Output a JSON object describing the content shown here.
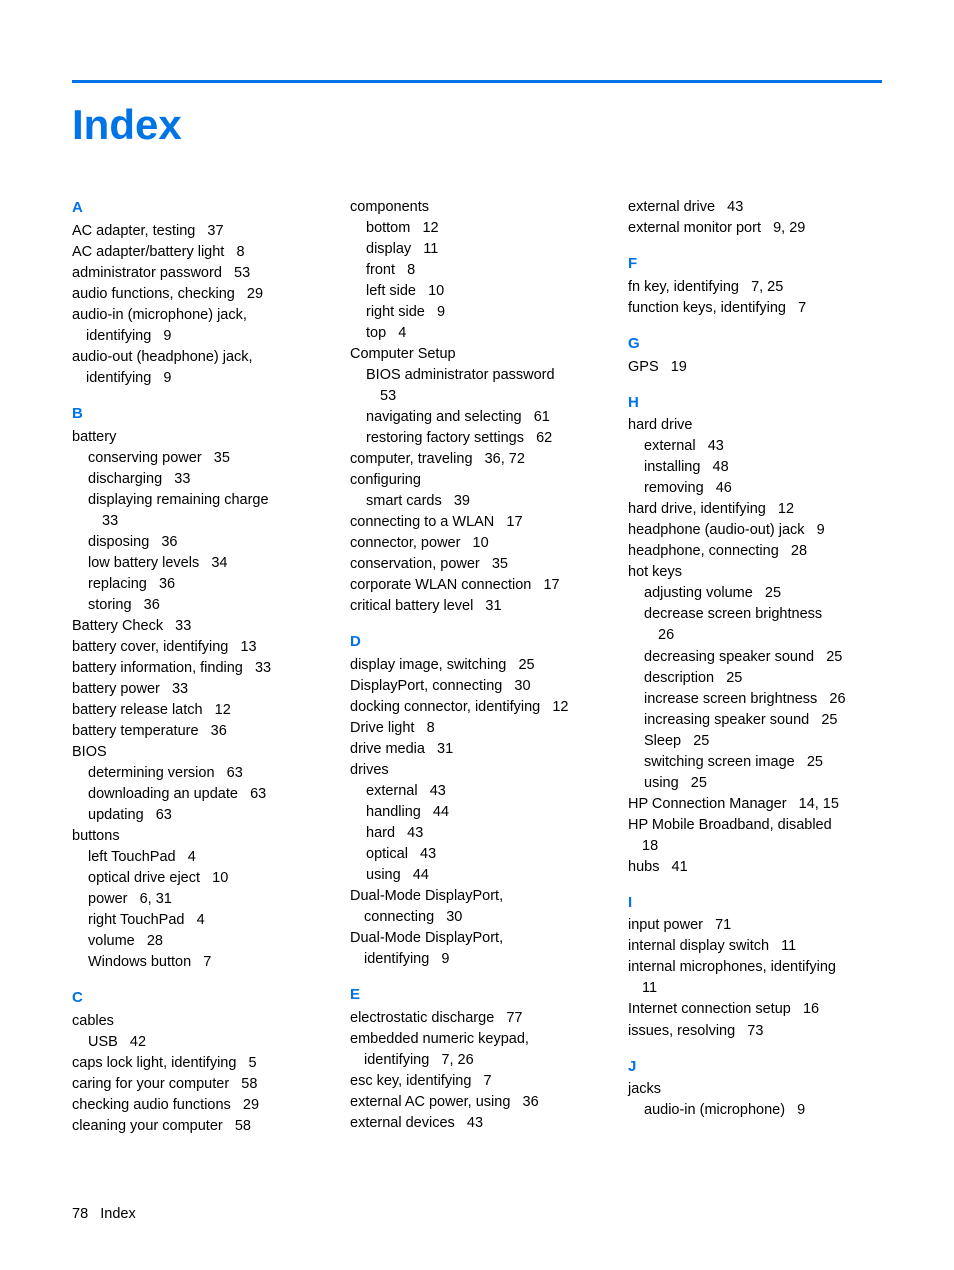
{
  "title": "Index",
  "footer_page": "78",
  "footer_label": "Index",
  "colors": {
    "accent": "#0073e6",
    "text": "#000000",
    "bg": "#ffffff"
  },
  "sections": [
    {
      "letter": "A",
      "entries": [
        {
          "t": "AC adapter, testing",
          "p": "37"
        },
        {
          "t": "AC adapter/battery light",
          "p": "8"
        },
        {
          "t": "administrator password",
          "p": "53"
        },
        {
          "t": "audio functions, checking",
          "p": "29"
        },
        {
          "t": "audio-in (microphone) jack,"
        },
        {
          "t": "identifying",
          "p": "9",
          "cont": true
        },
        {
          "t": "audio-out (headphone) jack,"
        },
        {
          "t": "identifying",
          "p": "9",
          "cont": true
        }
      ]
    },
    {
      "letter": "B",
      "entries": [
        {
          "t": "battery"
        },
        {
          "t": "conserving power",
          "p": "35",
          "sub": true
        },
        {
          "t": "discharging",
          "p": "33",
          "sub": true
        },
        {
          "t": "displaying remaining charge",
          "sub": true
        },
        {
          "t": "33",
          "subcont": true
        },
        {
          "t": "disposing",
          "p": "36",
          "sub": true
        },
        {
          "t": "low battery levels",
          "p": "34",
          "sub": true
        },
        {
          "t": "replacing",
          "p": "36",
          "sub": true
        },
        {
          "t": "storing",
          "p": "36",
          "sub": true
        },
        {
          "t": "Battery Check",
          "p": "33"
        },
        {
          "t": "battery cover, identifying",
          "p": "13"
        },
        {
          "t": "battery information, finding",
          "p": "33"
        },
        {
          "t": "battery power",
          "p": "33"
        },
        {
          "t": "battery release latch",
          "p": "12"
        },
        {
          "t": "battery temperature",
          "p": "36"
        },
        {
          "t": "BIOS"
        },
        {
          "t": "determining version",
          "p": "63",
          "sub": true
        },
        {
          "t": "downloading an update",
          "p": "63",
          "sub": true
        },
        {
          "t": "updating",
          "p": "63",
          "sub": true
        },
        {
          "t": "buttons"
        },
        {
          "t": "left TouchPad",
          "p": "4",
          "sub": true
        },
        {
          "t": "optical drive eject",
          "p": "10",
          "sub": true
        },
        {
          "t": "power",
          "p": "6, 31",
          "sub": true
        },
        {
          "t": "right TouchPad",
          "p": "4",
          "sub": true
        },
        {
          "t": "volume",
          "p": "28",
          "sub": true
        },
        {
          "t": "Windows button",
          "p": "7",
          "sub": true
        }
      ]
    },
    {
      "letter": "C",
      "entries": [
        {
          "t": "cables"
        },
        {
          "t": "USB",
          "p": "42",
          "sub": true
        },
        {
          "t": "caps lock light, identifying",
          "p": "5"
        },
        {
          "t": "caring for your computer",
          "p": "58"
        },
        {
          "t": "checking audio functions",
          "p": "29"
        },
        {
          "t": "cleaning your computer",
          "p": "58"
        }
      ]
    },
    {
      "entries": [
        {
          "t": "components"
        },
        {
          "t": "bottom",
          "p": "12",
          "sub": true
        },
        {
          "t": "display",
          "p": "11",
          "sub": true
        },
        {
          "t": "front",
          "p": "8",
          "sub": true
        },
        {
          "t": "left side",
          "p": "10",
          "sub": true
        },
        {
          "t": "right side",
          "p": "9",
          "sub": true
        },
        {
          "t": "top",
          "p": "4",
          "sub": true
        },
        {
          "t": "Computer Setup"
        },
        {
          "t": "BIOS administrator password",
          "sub": true
        },
        {
          "t": "53",
          "subcont": true
        },
        {
          "t": "navigating and selecting",
          "p": "61",
          "sub": true
        },
        {
          "t": "restoring factory settings",
          "p": "62",
          "sub": true
        },
        {
          "t": "computer, traveling",
          "p": "36, 72"
        },
        {
          "t": "configuring"
        },
        {
          "t": "smart cards",
          "p": "39",
          "sub": true
        },
        {
          "t": "connecting to a WLAN",
          "p": "17"
        },
        {
          "t": "connector, power",
          "p": "10"
        },
        {
          "t": "conservation, power",
          "p": "35"
        },
        {
          "t": "corporate WLAN connection",
          "p": "17"
        },
        {
          "t": "critical battery level",
          "p": "31"
        }
      ]
    },
    {
      "letter": "D",
      "entries": [
        {
          "t": "display image, switching",
          "p": "25"
        },
        {
          "t": "DisplayPort, connecting",
          "p": "30"
        },
        {
          "t": "docking connector, identifying",
          "p": "12"
        },
        {
          "t": "Drive light",
          "p": "8"
        },
        {
          "t": "drive media",
          "p": "31"
        },
        {
          "t": "drives"
        },
        {
          "t": "external",
          "p": "43",
          "sub": true
        },
        {
          "t": "handling",
          "p": "44",
          "sub": true
        },
        {
          "t": "hard",
          "p": "43",
          "sub": true
        },
        {
          "t": "optical",
          "p": "43",
          "sub": true
        },
        {
          "t": "using",
          "p": "44",
          "sub": true
        },
        {
          "t": "Dual-Mode DisplayPort,"
        },
        {
          "t": "connecting",
          "p": "30",
          "cont": true
        },
        {
          "t": "Dual-Mode DisplayPort,"
        },
        {
          "t": "identifying",
          "p": "9",
          "cont": true
        }
      ]
    },
    {
      "letter": "E",
      "entries": [
        {
          "t": "electrostatic discharge",
          "p": "77"
        },
        {
          "t": "embedded numeric keypad,"
        },
        {
          "t": "identifying",
          "p": "7, 26",
          "cont": true
        },
        {
          "t": "esc key, identifying",
          "p": "7"
        },
        {
          "t": "external AC power, using",
          "p": "36"
        },
        {
          "t": "external devices",
          "p": "43"
        }
      ]
    },
    {
      "entries": [
        {
          "t": "external drive",
          "p": "43"
        },
        {
          "t": "external monitor port",
          "p": "9, 29"
        }
      ]
    },
    {
      "letter": "F",
      "entries": [
        {
          "t": "fn key, identifying",
          "p": "7, 25"
        },
        {
          "t": "function keys, identifying",
          "p": "7"
        }
      ]
    },
    {
      "letter": "G",
      "entries": [
        {
          "t": "GPS",
          "p": "19"
        }
      ]
    },
    {
      "letter": "H",
      "entries": [
        {
          "t": "hard drive"
        },
        {
          "t": "external",
          "p": "43",
          "sub": true
        },
        {
          "t": "installing",
          "p": "48",
          "sub": true
        },
        {
          "t": "removing",
          "p": "46",
          "sub": true
        },
        {
          "t": "hard drive, identifying",
          "p": "12"
        },
        {
          "t": "headphone (audio-out) jack",
          "p": "9"
        },
        {
          "t": "headphone, connecting",
          "p": "28"
        },
        {
          "t": "hot keys"
        },
        {
          "t": "adjusting volume",
          "p": "25",
          "sub": true
        },
        {
          "t": "decrease screen brightness",
          "sub": true
        },
        {
          "t": "26",
          "subcont": true
        },
        {
          "t": "decreasing speaker sound",
          "p": "25",
          "sub": true
        },
        {
          "t": "description",
          "p": "25",
          "sub": true
        },
        {
          "t": "increase screen brightness",
          "p": "26",
          "sub": true
        },
        {
          "t": "increasing speaker sound",
          "p": "25",
          "sub": true
        },
        {
          "t": "Sleep",
          "p": "25",
          "sub": true
        },
        {
          "t": "switching screen image",
          "p": "25",
          "sub": true
        },
        {
          "t": "using",
          "p": "25",
          "sub": true
        },
        {
          "t": "HP Connection Manager",
          "p": "14, 15"
        },
        {
          "t": "HP Mobile Broadband, disabled"
        },
        {
          "t": "18",
          "cont": true
        },
        {
          "t": "hubs",
          "p": "41"
        }
      ]
    },
    {
      "letter": "I",
      "entries": [
        {
          "t": "input power",
          "p": "71"
        },
        {
          "t": "internal display switch",
          "p": "11"
        },
        {
          "t": "internal microphones, identifying"
        },
        {
          "t": "11",
          "cont": true
        },
        {
          "t": "Internet connection setup",
          "p": "16"
        },
        {
          "t": "issues, resolving",
          "p": "73"
        }
      ]
    },
    {
      "letter": "J",
      "entries": [
        {
          "t": "jacks"
        },
        {
          "t": "audio-in (microphone)",
          "p": "9",
          "sub": true
        }
      ]
    }
  ]
}
